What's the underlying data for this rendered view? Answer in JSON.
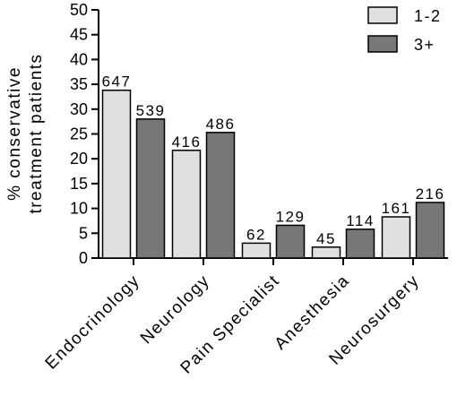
{
  "chart_data": {
    "type": "bar",
    "title": "",
    "xlabel": "",
    "ylabel_lines": [
      "% conservative",
      "treatment patients"
    ],
    "ylim": [
      0,
      50
    ],
    "yticks": [
      0,
      5,
      10,
      15,
      20,
      25,
      30,
      35,
      40,
      45,
      50
    ],
    "categories": [
      "Endocrinology",
      "Neurology",
      "Pain Specialist",
      "Anesthesia",
      "Neurosurgery"
    ],
    "series": [
      {
        "name": "1-2",
        "color": "#e0e0e0",
        "values": [
          33.8,
          21.7,
          3.0,
          2.2,
          8.3
        ],
        "labels": [
          "647",
          "416",
          "62",
          "45",
          "161"
        ]
      },
      {
        "name": "3+",
        "color": "#777777",
        "values": [
          28.0,
          25.3,
          6.6,
          5.8,
          11.2
        ],
        "labels": [
          "539",
          "486",
          "129",
          "114",
          "216"
        ]
      }
    ],
    "legend_position": "top-right",
    "grid": false
  }
}
